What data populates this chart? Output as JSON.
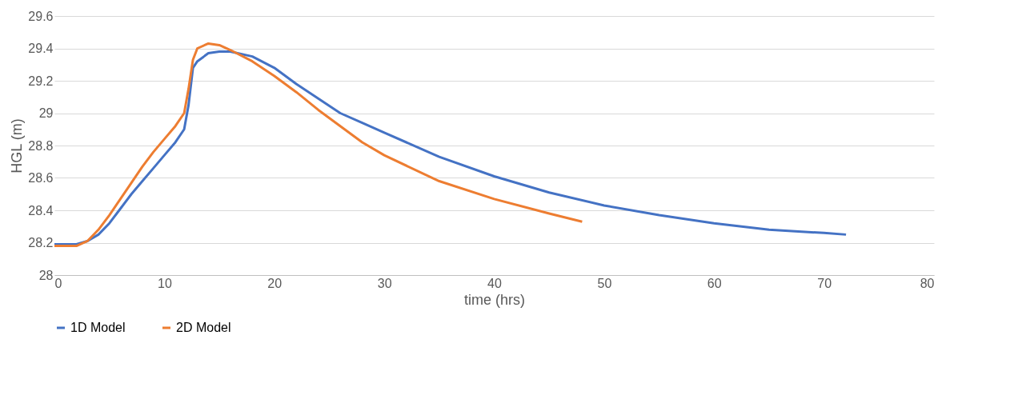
{
  "chart_data": {
    "type": "line",
    "xlabel": "time (hrs)",
    "ylabel": "HGL (m)",
    "xlim": [
      0,
      80
    ],
    "xticks": [
      0,
      10,
      20,
      30,
      40,
      50,
      60,
      70,
      80
    ],
    "ylim": [
      28,
      29.6
    ],
    "yticks": [
      28,
      28.2,
      28.4,
      28.6,
      28.8,
      29,
      29.2,
      29.4,
      29.6
    ],
    "grid": "y",
    "legend": "bottom",
    "marker": "none",
    "line_style": "solid",
    "series": [
      {
        "name": "1D Model",
        "color": "#4472c4",
        "x": [
          0,
          2,
          3,
          4,
          5,
          6,
          7,
          8,
          9,
          10,
          11,
          11.8,
          12.2,
          12.6,
          13,
          14,
          15,
          16,
          18,
          20,
          22,
          24,
          26,
          28,
          30,
          35,
          40,
          45,
          50,
          55,
          60,
          65,
          70,
          72
        ],
        "values": [
          28.19,
          28.19,
          28.21,
          28.25,
          28.32,
          28.41,
          28.5,
          28.58,
          28.66,
          28.74,
          28.82,
          28.9,
          29.05,
          29.28,
          29.32,
          29.37,
          29.38,
          29.38,
          29.35,
          29.28,
          29.18,
          29.09,
          29.0,
          28.94,
          28.88,
          28.73,
          28.61,
          28.51,
          28.43,
          28.37,
          28.32,
          28.28,
          28.26,
          28.25
        ]
      },
      {
        "name": "2D Model",
        "color": "#ed7d31",
        "x": [
          0,
          2,
          3,
          4,
          5,
          6,
          7,
          8,
          9,
          10,
          11,
          11.8,
          12.2,
          12.6,
          13,
          14,
          15,
          16,
          18,
          20,
          22,
          24,
          26,
          28,
          30,
          35,
          40,
          45,
          48
        ],
        "values": [
          28.18,
          28.18,
          28.21,
          28.28,
          28.37,
          28.47,
          28.57,
          28.67,
          28.76,
          28.84,
          28.92,
          29.0,
          29.15,
          29.33,
          29.4,
          29.43,
          29.42,
          29.39,
          29.32,
          29.23,
          29.13,
          29.02,
          28.92,
          28.82,
          28.74,
          28.58,
          28.47,
          28.38,
          28.33
        ]
      }
    ]
  }
}
